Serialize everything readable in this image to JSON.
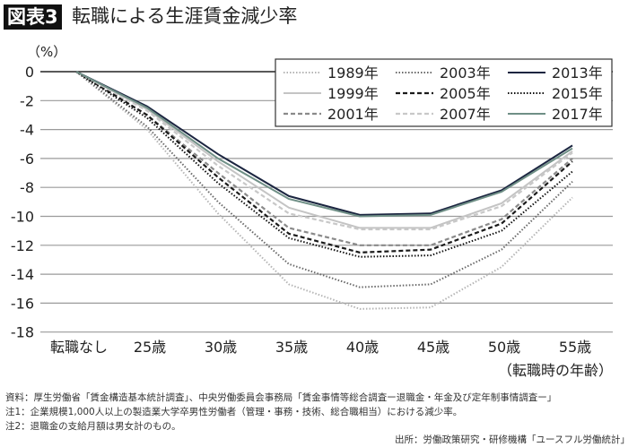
{
  "title_badge": "図表3",
  "title": "転職による生涯賃金減少率",
  "notes": [
    "資料：厚生労働省「賃金構造基本統計調査」、中央労働委員会事務局「賃金事情等総合調査ー退職金・年金及び定年制事情調査ー」",
    "注1：企業規模1,000人以上の製造業大学卒男性労働者（管理・事務・技術、総合職相当）における減少率。",
    "注2：退職金の支給月額は男女計のもの。"
  ],
  "source": "出所：労働政策研究・研修機構「ユースフル労働統計」",
  "chart_data": {
    "type": "line",
    "title": "転職による生涯賃金減少率",
    "ylabel": "（%）",
    "xlabel": "（転職時の年齢）",
    "categories": [
      "転職なし",
      "25歳",
      "30歳",
      "35歳",
      "40歳",
      "45歳",
      "50歳",
      "55歳"
    ],
    "ylim": [
      -18,
      0
    ],
    "yticks": [
      0,
      -2,
      -4,
      -6,
      -8,
      -10,
      -12,
      -14,
      -16,
      -18
    ],
    "grid": true,
    "legend_position": "top-right",
    "series": [
      {
        "name": "1989年",
        "style": "dotted",
        "color": "#b5b5b5",
        "values": [
          0,
          -4.0,
          -9.8,
          -14.7,
          -16.4,
          -16.3,
          -13.5,
          -8.7
        ]
      },
      {
        "name": "1999年",
        "style": "solid",
        "color": "#c4c4c4",
        "values": [
          0,
          -2.6,
          -6.2,
          -9.4,
          -10.8,
          -10.8,
          -9.1,
          -5.5
        ]
      },
      {
        "name": "2001年",
        "style": "dashed",
        "color": "#8a8a8a",
        "values": [
          0,
          -3.0,
          -7.0,
          -10.8,
          -12.0,
          -12.0,
          -10.2,
          -6.0
        ]
      },
      {
        "name": "2003年",
        "style": "dotted",
        "color": "#6a6a6a",
        "values": [
          0,
          -3.8,
          -9.0,
          -13.3,
          -14.9,
          -14.7,
          -12.3,
          -7.6
        ]
      },
      {
        "name": "2005年",
        "style": "dashed",
        "color": "#1a1a1a",
        "values": [
          0,
          -3.0,
          -7.3,
          -11.2,
          -12.5,
          -12.3,
          -10.5,
          -6.2
        ]
      },
      {
        "name": "2007年",
        "style": "dashed",
        "color": "#c8c8c8",
        "values": [
          0,
          -2.7,
          -6.5,
          -9.8,
          -10.9,
          -10.9,
          -9.3,
          -5.6
        ]
      },
      {
        "name": "2013年",
        "style": "solid",
        "color": "#1b2540",
        "values": [
          0,
          -2.4,
          -5.7,
          -8.6,
          -9.9,
          -9.8,
          -8.2,
          -5.1
        ]
      },
      {
        "name": "2015年",
        "style": "dotted",
        "color": "#111111",
        "values": [
          0,
          -3.2,
          -7.7,
          -11.5,
          -12.8,
          -12.7,
          -11.0,
          -6.9
        ]
      },
      {
        "name": "2017年",
        "style": "solid",
        "color": "#6f8f86",
        "values": [
          0,
          -2.5,
          -6.0,
          -8.8,
          -10.0,
          -9.9,
          -8.3,
          -5.3
        ]
      }
    ]
  }
}
